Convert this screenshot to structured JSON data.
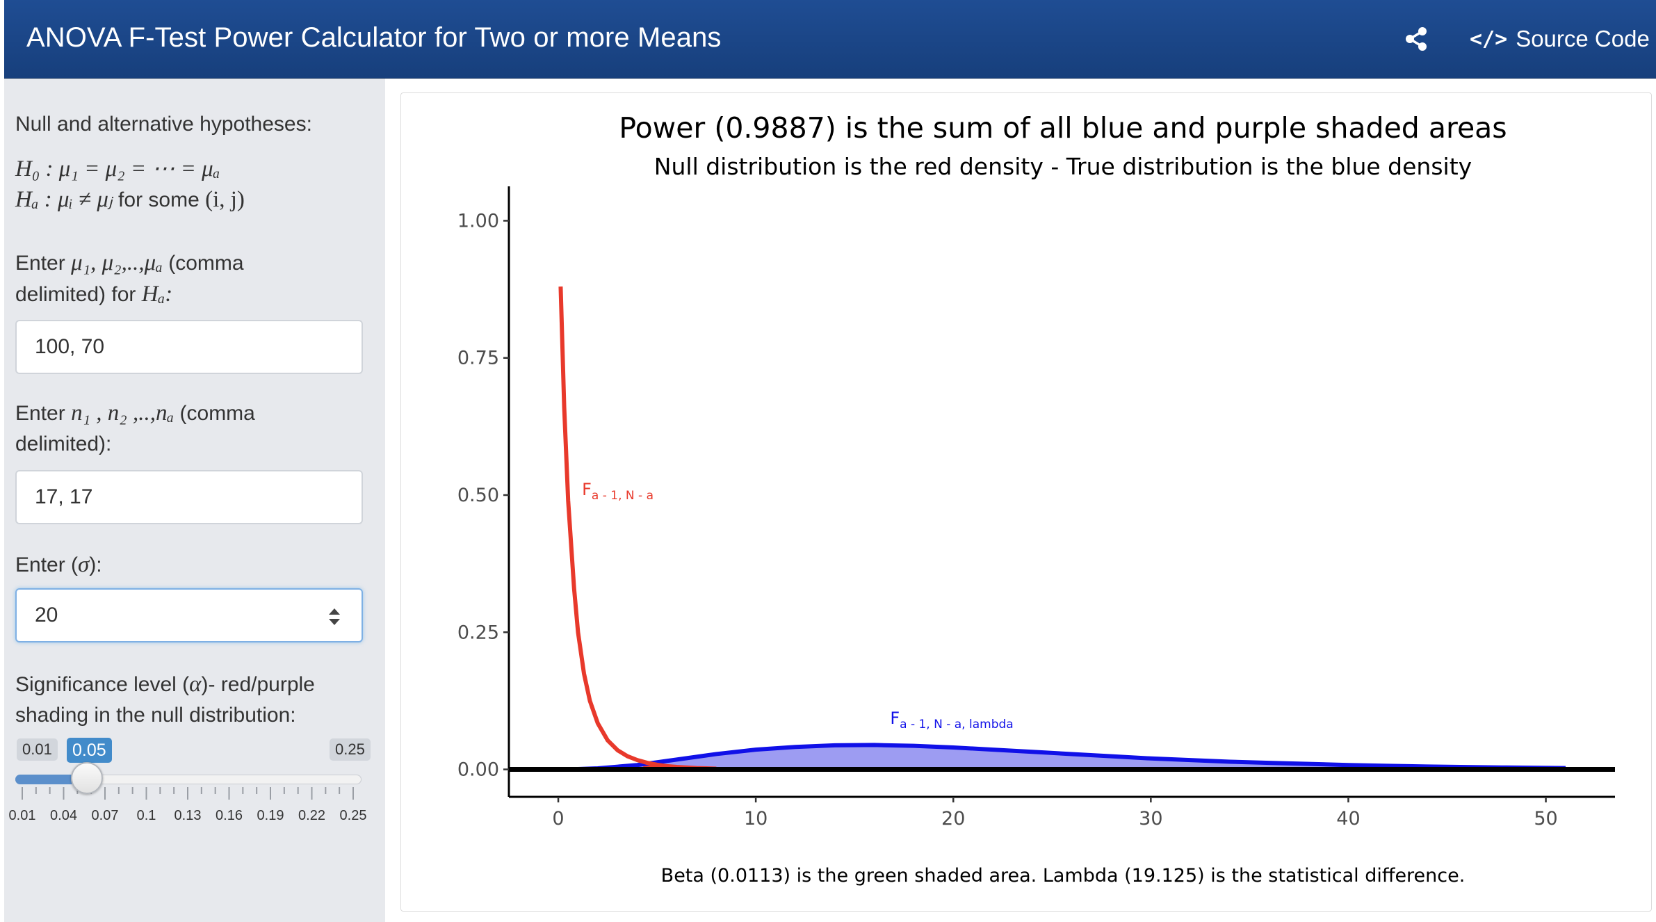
{
  "navbar": {
    "title": "ANOVA F-Test Power Calculator for Two or more Means",
    "share_icon": "share-icon",
    "source_icon": "code-icon",
    "source_label": "Source Code"
  },
  "sidebar": {
    "hyp_label": "Null and alternative hypotheses:",
    "h0_text": "H₀ : μ₁ = μ₂ = ⋯ = μₐ",
    "ha_text": "Hₐ : μᵢ ≠ μⱼ",
    "ha_suffix": "for some",
    "ha_pair": "(i, j)",
    "means_label_pre": "Enter",
    "means_label_vars": "μ₁, μ₂,..,μₐ",
    "means_label_post": "(comma",
    "means_label_line2": "delimited) for",
    "means_label_ha": "Hₐ:",
    "means_value": "100, 70",
    "n_label_pre": "Enter",
    "n_label_vars": "n₁ , n₂ ,..,nₐ",
    "n_label_post": "(comma",
    "n_label_line2": "delimited):",
    "n_value": "17, 17",
    "sigma_label_pre": "Enter (",
    "sigma_symbol": "σ",
    "sigma_label_post": "):",
    "sigma_value": "20",
    "alpha_label_pre": "Significance level (",
    "alpha_symbol": "α",
    "alpha_label_post": ")- red/purple",
    "alpha_label_line2": "shading in the null distribution:",
    "slider": {
      "min": 0.01,
      "max": 0.25,
      "value": 0.05,
      "min_label": "0.01",
      "max_label": "0.25",
      "value_label": "0.05",
      "ticks": [
        "0.01",
        "0.04",
        "0.07",
        "0.1",
        "0.13",
        "0.16",
        "0.19",
        "0.22",
        "0.25"
      ]
    }
  },
  "chart_data": {
    "type": "area",
    "title": "Power (0.9887) is the sum of all blue and purple shaded areas",
    "subtitle": "Null distribution is the red density - True distribution is the blue density",
    "caption": "Beta (0.0113) is the green shaded area. Lambda (19.125) is the statistical difference.",
    "xlim": [
      -2.5,
      53.5
    ],
    "ylim": [
      -0.05,
      1.05
    ],
    "x_ticks": [
      0,
      10,
      20,
      30,
      40,
      50
    ],
    "x_tick_labels": [
      "0",
      "10",
      "20",
      "30",
      "40",
      "50"
    ],
    "y_ticks": [
      0,
      0.25,
      0.5,
      0.75,
      1.0
    ],
    "y_tick_labels": [
      "0.00",
      "0.25",
      "0.50",
      "0.75",
      "1.00"
    ],
    "critical_value": 4.15,
    "colors": {
      "null_line": "#e8392b",
      "null_fill": "#e8392b",
      "alt_line": "#1010e8",
      "alt_fill": "#9d9cf2",
      "beta_fill": "#1aa31a",
      "axis": "#000000"
    },
    "annotations": [
      {
        "base": "F",
        "sub": "a - 1, N - a",
        "x": 1.2,
        "y": 0.5,
        "color": "#e8392b"
      },
      {
        "base": "F",
        "sub": "a - 1, N - a, lambda",
        "x": 16.8,
        "y": 0.083,
        "color": "#1010e8"
      }
    ],
    "series": [
      {
        "name": "F a-1, N-a",
        "x": [
          0.12,
          0.3,
          0.5,
          0.8,
          1.0,
          1.3,
          1.6,
          2.0,
          2.5,
          3.0,
          3.5,
          4.0,
          4.5,
          5.0,
          5.5,
          6.0,
          7.0,
          8.0
        ],
        "y": [
          0.88,
          0.66,
          0.49,
          0.33,
          0.25,
          0.175,
          0.125,
          0.084,
          0.053,
          0.035,
          0.024,
          0.017,
          0.012,
          0.0085,
          0.006,
          0.0045,
          0.0025,
          0.0014
        ]
      },
      {
        "name": "F a-1, N-a, lambda",
        "x": [
          0.5,
          2,
          4,
          6,
          8,
          10,
          12,
          14,
          16,
          18,
          20,
          22,
          24,
          26,
          28,
          30,
          32,
          34,
          36,
          38,
          40,
          42,
          44,
          46,
          48,
          51
        ],
        "y": [
          0.0,
          0.002,
          0.008,
          0.018,
          0.028,
          0.036,
          0.041,
          0.044,
          0.0445,
          0.043,
          0.04,
          0.036,
          0.032,
          0.028,
          0.024,
          0.02,
          0.017,
          0.014,
          0.012,
          0.01,
          0.008,
          0.0065,
          0.0053,
          0.0043,
          0.0035,
          0.0025
        ]
      }
    ]
  }
}
